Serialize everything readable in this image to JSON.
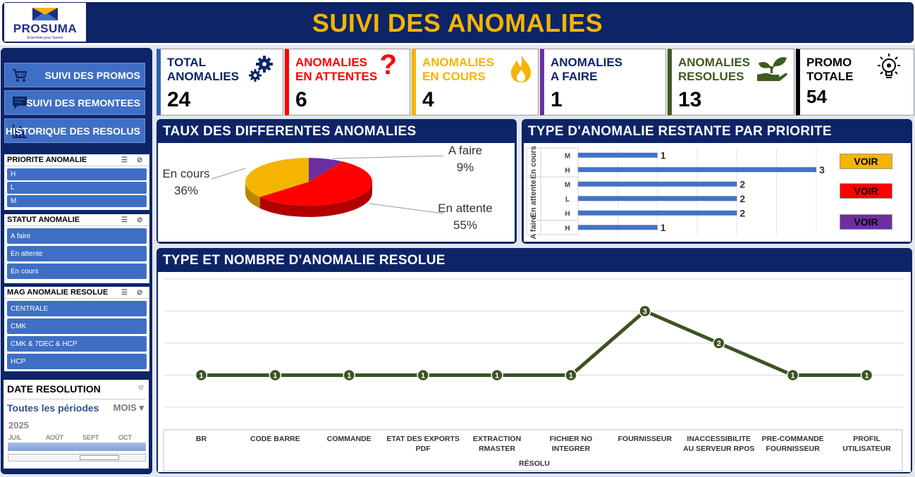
{
  "header": {
    "title": "SUIVI DES ANOMALIES",
    "logo_text": "PROSUMA",
    "logo_tagline": "Ensemble pour l'avenir"
  },
  "nav": [
    {
      "label": "SUIVI DES PROMOS",
      "icon": "cart-icon"
    },
    {
      "label": "SUIVI DES REMONTEES",
      "icon": "chat-icon"
    },
    {
      "label": "HISTORIQUE DES RESOLUS",
      "icon": "bar-chart-icon"
    }
  ],
  "slicers": {
    "priorite": {
      "title": "PRIORITE ANOMALIE",
      "items": [
        "H",
        "L",
        "M"
      ]
    },
    "statut": {
      "title": "STATUT ANOMALIE",
      "items": [
        "A faire",
        "En attente",
        "En cours"
      ]
    },
    "mag": {
      "title": "MAG ANOMALIE RESOLUE",
      "items": [
        "CENTRALE",
        "CMK",
        "CMK & 7DEC & HCP",
        "HCP"
      ]
    }
  },
  "timeline": {
    "title": "DATE RESOLUTION",
    "all_periods": "Toutes les périodes",
    "unit": "MOIS",
    "year": "2025",
    "months": [
      "JUIL",
      "AOÛT",
      "SEPT",
      "OCT"
    ]
  },
  "kpis": [
    {
      "label1": "TOTAL",
      "label2": "ANOMALIES",
      "value": "24",
      "color": "#2e5fb0",
      "icon": "gears-icon"
    },
    {
      "label1": "ANOMALIES",
      "label2": "EN ATTENTES",
      "value": "6",
      "color": "#ff0000",
      "icon": "question-icon"
    },
    {
      "label1": "ANOMALIES",
      "label2": "EN COURS",
      "value": "4",
      "color": "#f5b400",
      "icon": "flame-icon"
    },
    {
      "label1": "ANOMALIES",
      "label2": "A FAIRE",
      "value": "1",
      "color": "#6d2fa0",
      "icon": "none"
    },
    {
      "label1": "ANOMALIES",
      "label2": "RESOLUES",
      "value": "13",
      "color": "#3f5a1f",
      "icon": "plant-hand-icon"
    },
    {
      "label1": "PROMO",
      "label2": "TOTALE",
      "value": "54",
      "color": "#000000",
      "icon": "lightbulb-icon"
    }
  ],
  "kpi_label_colors": [
    "#0d2466",
    "#ff0000",
    "#f5b400",
    "#0d2466",
    "#3f5a1f",
    "#000000"
  ],
  "panels": {
    "pie_title": "TAUX DES DIFFERENTES ANOMALIES",
    "bar_title": "TYPE D'ANOMALIE RESTANTE PAR PRIORITE",
    "line_title": "TYPE ET NOMBRE D'ANOMALIE RESOLUE"
  },
  "voir_buttons": [
    {
      "label": "VOIR",
      "color": "#f5b400"
    },
    {
      "label": "VOIR",
      "color": "#ff0000"
    },
    {
      "label": "VOIR",
      "color": "#6d2fa0"
    }
  ],
  "chart_data": [
    {
      "type": "pie",
      "slices": [
        {
          "name": "A faire",
          "value": 9,
          "label": "9%",
          "color": "#6d2fa0"
        },
        {
          "name": "En attente",
          "value": 55,
          "label": "55%",
          "color": "#ff0000"
        },
        {
          "name": "En cours",
          "value": 36,
          "label": "36%",
          "color": "#f5b400"
        }
      ]
    },
    {
      "type": "bar",
      "orientation": "horizontal",
      "groups": [
        {
          "name": "En cours",
          "rows": [
            {
              "category": "M",
              "value": 1
            },
            {
              "category": "H",
              "value": 3
            }
          ]
        },
        {
          "name": "En attente",
          "rows": [
            {
              "category": "M",
              "value": 2
            },
            {
              "category": "L",
              "value": 2
            },
            {
              "category": "H",
              "value": 2
            }
          ]
        },
        {
          "name": "A faire",
          "rows": [
            {
              "category": "H",
              "value": 1
            }
          ]
        }
      ],
      "xlim": [
        0,
        3
      ],
      "color": "#4472c4",
      "grid": true
    },
    {
      "type": "line",
      "categories": [
        "BR",
        "CODE BARRE",
        "COMMANDE",
        "ETAT DES EXPORTS PDF",
        "EXTRACTION RMASTER",
        "FICHIER NO INTEGRER",
        "FOURNISSEUR",
        "INACCESSIBILITE AU SERVEUR RPOS",
        "PRE-COMMANDE FOURNISSEUR",
        "PROFIL UTILISATEUR"
      ],
      "values": [
        1,
        1,
        1,
        1,
        1,
        1,
        3,
        2,
        1,
        1
      ],
      "xlabel": "RÉSOLU",
      "ylim": [
        0,
        4
      ],
      "color": "#3b5323",
      "grid": true
    }
  ]
}
